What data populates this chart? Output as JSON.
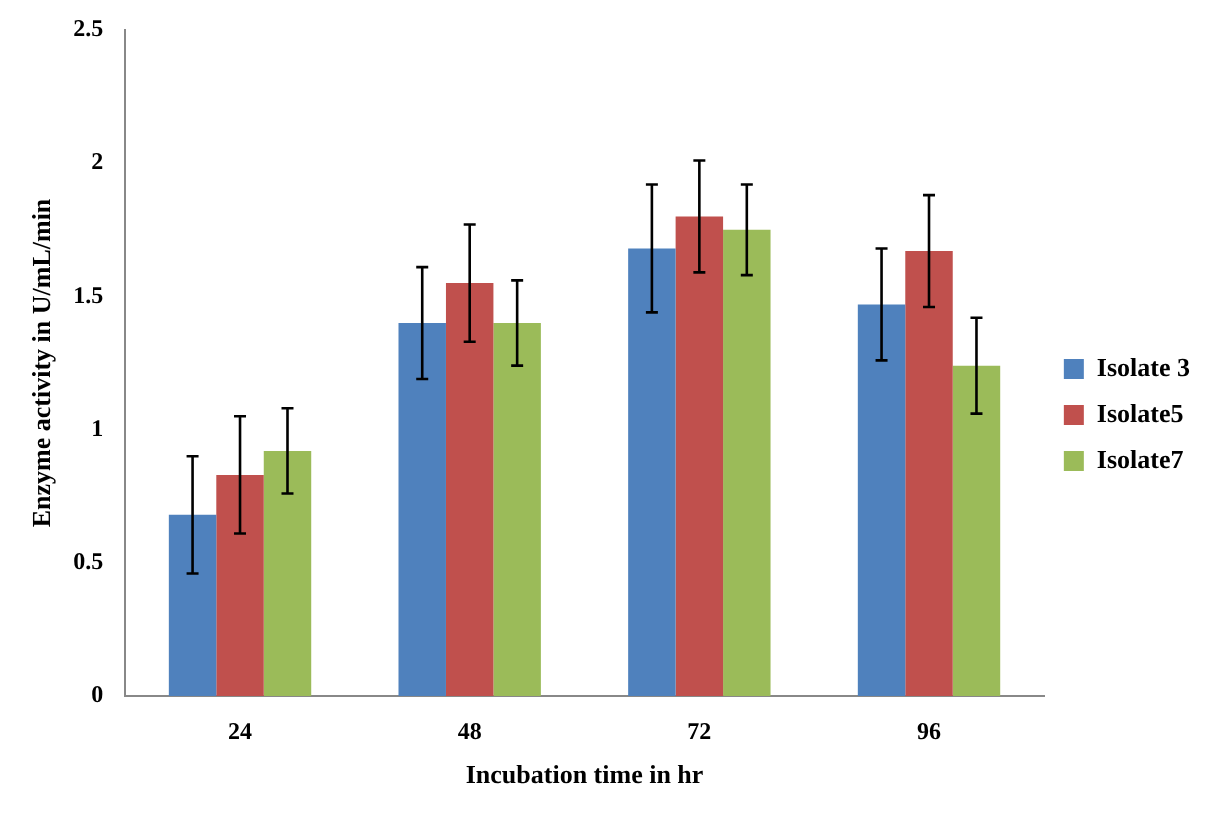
{
  "chart_data": {
    "type": "bar",
    "xlabel": "Incubation time in hr",
    "ylabel": "Enzyme activity in U/mL/min",
    "categories": [
      "24",
      "48",
      "72",
      "96"
    ],
    "series": [
      {
        "name": "Isolate 3",
        "color": "#4f81bd",
        "values": [
          0.68,
          1.4,
          1.68,
          1.47
        ],
        "errors": [
          0.22,
          0.21,
          0.24,
          0.21
        ]
      },
      {
        "name": "Isolate5",
        "color": "#c0504d",
        "values": [
          0.83,
          1.55,
          1.8,
          1.67
        ],
        "errors": [
          0.22,
          0.22,
          0.21,
          0.21
        ]
      },
      {
        "name": "Isolate7",
        "color": "#9bbb59",
        "values": [
          0.92,
          1.4,
          1.75,
          1.24
        ],
        "errors": [
          0.16,
          0.16,
          0.17,
          0.18
        ]
      }
    ],
    "ylim": [
      0,
      2.5
    ],
    "yticks": [
      0,
      0.5,
      1,
      1.5,
      2,
      2.5
    ],
    "grid": false,
    "legend": "right"
  }
}
